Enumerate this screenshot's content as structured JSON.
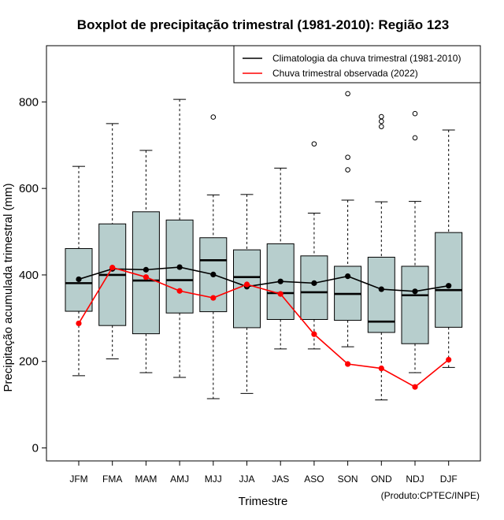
{
  "chart_data": {
    "type": "boxplot",
    "title": "Boxplot de precipitação trimestral (1981-2010): Região 123",
    "xlabel": "Trimestre",
    "ylabel": "Precipitação acumulada trimestral (mm)",
    "ylim": [
      -30,
      930
    ],
    "yticks": [
      0,
      200,
      400,
      600,
      800
    ],
    "credit": "(Produto:CPTEC/INPE)",
    "categories": [
      "JFM",
      "FMA",
      "MAM",
      "AMJ",
      "MJJ",
      "JJA",
      "JAS",
      "ASO",
      "SON",
      "OND",
      "NDJ",
      "DJF"
    ],
    "boxes": [
      {
        "min": 167,
        "q1": 316,
        "median": 381,
        "q3": 461,
        "max": 651,
        "outliers": []
      },
      {
        "min": 206,
        "q1": 283,
        "median": 400,
        "q3": 518,
        "max": 750,
        "outliers": []
      },
      {
        "min": 174,
        "q1": 264,
        "median": 387,
        "q3": 546,
        "max": 688,
        "outliers": []
      },
      {
        "min": 163,
        "q1": 312,
        "median": 388,
        "q3": 527,
        "max": 806,
        "outliers": []
      },
      {
        "min": 114,
        "q1": 315,
        "median": 434,
        "q3": 486,
        "max": 585,
        "outliers": [
          765
        ]
      },
      {
        "min": 126,
        "q1": 278,
        "median": 395,
        "q3": 458,
        "max": 586,
        "outliers": []
      },
      {
        "min": 229,
        "q1": 297,
        "median": 358,
        "q3": 472,
        "max": 647,
        "outliers": []
      },
      {
        "min": 229,
        "q1": 297,
        "median": 360,
        "q3": 444,
        "max": 543,
        "outliers": [
          703
        ]
      },
      {
        "min": 234,
        "q1": 295,
        "median": 356,
        "q3": 420,
        "max": 573,
        "outliers": [
          643,
          672,
          819
        ]
      },
      {
        "min": 111,
        "q1": 267,
        "median": 292,
        "q3": 441,
        "max": 569,
        "outliers": [
          743,
          755,
          766
        ]
      },
      {
        "min": 174,
        "q1": 241,
        "median": 353,
        "q3": 420,
        "max": 570,
        "outliers": [
          717,
          773
        ]
      },
      {
        "min": 186,
        "q1": 279,
        "median": 365,
        "q3": 498,
        "max": 735,
        "outliers": []
      }
    ],
    "series": [
      {
        "name": "Climatologia da chuva trimestral (1981-2010)",
        "color": "#000000",
        "values": [
          390,
          414,
          412,
          418,
          401,
          373,
          385,
          381,
          397,
          367,
          362,
          375
        ]
      },
      {
        "name": "Chuva trimestral observada (2022)",
        "color": "#ff0000",
        "values": [
          288,
          417,
          395,
          363,
          347,
          378,
          356,
          263,
          194,
          184,
          141,
          204
        ]
      }
    ],
    "legend_position": "top-right",
    "box_color": "#b7cecd"
  }
}
